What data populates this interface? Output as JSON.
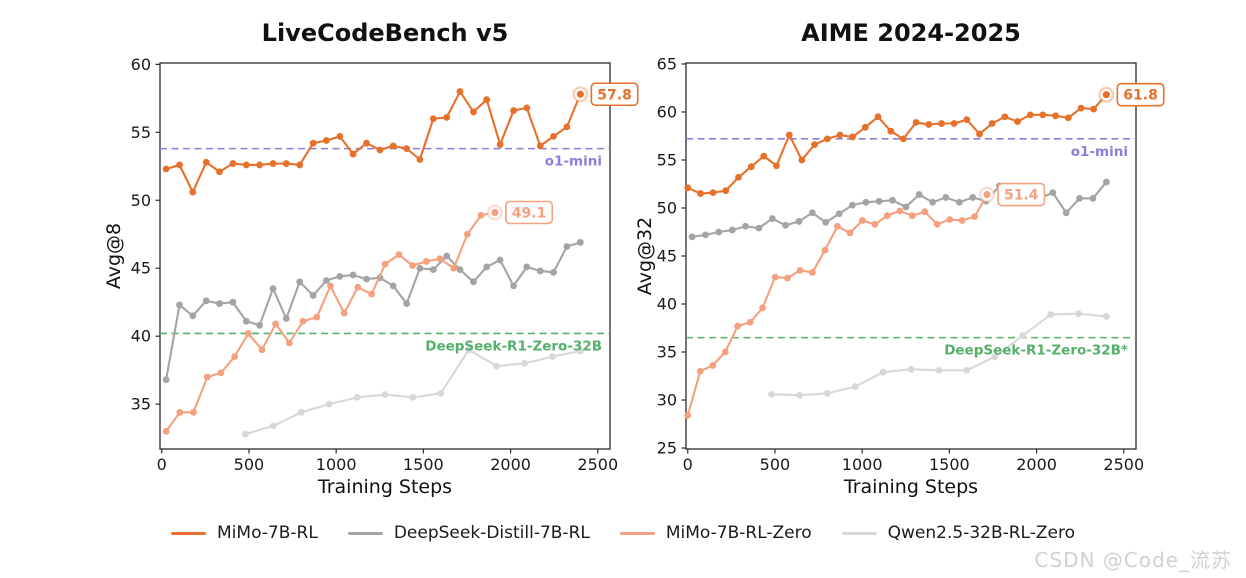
{
  "figure": {
    "watermark": "CSDN @Code_流苏"
  },
  "legend": {
    "items": [
      {
        "label": "MiMo-7B-RL",
        "color": "#e7702b"
      },
      {
        "label": "DeepSeek-Distill-7B-RL",
        "color": "#a4a4a4"
      },
      {
        "label": "MiMo-7B-RL-Zero",
        "color": "#f3a17e"
      },
      {
        "label": "Qwen2.5-32B-RL-Zero",
        "color": "#d8d8d8"
      }
    ]
  },
  "chart_data": [
    {
      "type": "line",
      "title": "LiveCodeBench v5",
      "xlabel": "Training Steps",
      "ylabel": "Avg@8",
      "xlim": [
        -10,
        2570
      ],
      "ylim": [
        31.7,
        60.1
      ],
      "xticks": [
        0,
        500,
        1000,
        1500,
        2000,
        2500
      ],
      "yticks": [
        35,
        40,
        45,
        50,
        55,
        60
      ],
      "grid": false,
      "legend_position": "bottom-center",
      "ref_lines": [
        {
          "label": "o1-mini",
          "value": 53.8,
          "color": "#8d7edb"
        },
        {
          "label": "DeepSeek-R1-Zero-32B",
          "value": 40.2,
          "color": "#55b06a"
        }
      ],
      "series": [
        {
          "name": "MiMo-7B-RL",
          "color": "#e7702b",
          "end_annotation": "57.8",
          "x": [
            25,
            102,
            178,
            255,
            331,
            408,
            485,
            561,
            638,
            714,
            791,
            868,
            944,
            1021,
            1097,
            1174,
            1251,
            1327,
            1404,
            1480,
            1557,
            1634,
            1710,
            1787,
            1863,
            1940,
            2017,
            2093,
            2170,
            2246,
            2323,
            2400
          ],
          "y": [
            52.3,
            52.6,
            50.6,
            52.8,
            52.1,
            52.7,
            52.6,
            52.6,
            52.7,
            52.7,
            52.6,
            54.2,
            54.4,
            54.7,
            53.4,
            54.2,
            53.7,
            54.0,
            53.8,
            53.0,
            56.0,
            56.1,
            58.0,
            56.5,
            57.4,
            54.1,
            56.6,
            56.8,
            54.0,
            54.7,
            55.4,
            57.8
          ]
        },
        {
          "name": "DeepSeek-Distill-7B-RL",
          "color": "#a4a4a4",
          "x": [
            25,
            102,
            178,
            255,
            331,
            408,
            485,
            561,
            638,
            714,
            791,
            868,
            944,
            1021,
            1097,
            1174,
            1251,
            1327,
            1404,
            1480,
            1557,
            1634,
            1710,
            1787,
            1863,
            1940,
            2017,
            2093,
            2170,
            2246,
            2323,
            2400
          ],
          "y": [
            36.8,
            42.3,
            41.5,
            42.6,
            42.4,
            42.5,
            41.1,
            40.8,
            43.5,
            41.3,
            44.0,
            43.0,
            44.1,
            44.4,
            44.5,
            44.2,
            44.3,
            43.7,
            42.4,
            45.0,
            44.9,
            45.9,
            44.9,
            44.0,
            45.1,
            45.6,
            43.7,
            45.1,
            44.8,
            44.7,
            46.6,
            46.9
          ]
        },
        {
          "name": "MiMo-7B-RL-Zero",
          "color": "#f3a17e",
          "end_annotation": "49.1",
          "x": [
            25,
            104,
            182,
            261,
            339,
            418,
            496,
            575,
            653,
            732,
            810,
            889,
            967,
            1046,
            1124,
            1203,
            1281,
            1360,
            1438,
            1517,
            1595,
            1674,
            1752,
            1831,
            1910
          ],
          "y": [
            33.0,
            34.4,
            34.4,
            37.0,
            37.3,
            38.5,
            40.2,
            39.0,
            40.9,
            39.5,
            41.1,
            41.4,
            43.7,
            41.7,
            43.6,
            43.1,
            45.3,
            46.0,
            45.2,
            45.5,
            45.7,
            45.0,
            47.5,
            48.9,
            49.1
          ]
        },
        {
          "name": "Qwen2.5-32B-RL-Zero",
          "color": "#d8d8d8",
          "x": [
            480,
            640,
            800,
            960,
            1120,
            1280,
            1440,
            1600,
            1760,
            1920,
            2080,
            2240,
            2400
          ],
          "y": [
            32.8,
            33.4,
            34.4,
            35.0,
            35.5,
            35.7,
            35.5,
            35.8,
            39.0,
            37.8,
            38.0,
            38.5,
            38.9
          ]
        }
      ]
    },
    {
      "type": "line",
      "title": "AIME 2024-2025",
      "xlabel": "Training Steps",
      "ylabel": "Avg@32",
      "xlim": [
        -10,
        2570
      ],
      "ylim": [
        24.9,
        65.1
      ],
      "xticks": [
        0,
        500,
        1000,
        1500,
        2000,
        2500
      ],
      "yticks": [
        25,
        30,
        35,
        40,
        45,
        50,
        55,
        60,
        65
      ],
      "grid": false,
      "legend_position": "bottom-center",
      "ref_lines": [
        {
          "label": "o1-mini",
          "value": 57.2,
          "color": "#8d7edb"
        },
        {
          "label": "DeepSeek-R1-Zero-32B*",
          "value": 36.5,
          "color": "#55b06a"
        }
      ],
      "series": [
        {
          "name": "MiMo-7B-RL",
          "color": "#e7702b",
          "end_annotation": "61.8",
          "x": [
            0,
            73,
            145,
            218,
            291,
            364,
            436,
            509,
            582,
            654,
            727,
            800,
            873,
            945,
            1018,
            1091,
            1164,
            1236,
            1309,
            1382,
            1455,
            1527,
            1600,
            1673,
            1745,
            1818,
            1891,
            1964,
            2036,
            2109,
            2182,
            2255,
            2327,
            2400
          ],
          "y": [
            52.1,
            51.5,
            51.6,
            51.8,
            53.2,
            54.3,
            55.4,
            54.4,
            57.6,
            55.0,
            56.6,
            57.2,
            57.6,
            57.4,
            58.4,
            59.5,
            58.0,
            57.2,
            58.9,
            58.7,
            58.8,
            58.8,
            59.2,
            57.7,
            58.8,
            59.5,
            59.0,
            59.7,
            59.7,
            59.6,
            59.4,
            60.4,
            60.3,
            61.8
          ]
        },
        {
          "name": "DeepSeek-Distill-7B-RL",
          "color": "#a4a4a4",
          "x": [
            25,
            102,
            178,
            255,
            331,
            408,
            485,
            561,
            638,
            714,
            791,
            868,
            944,
            1021,
            1097,
            1174,
            1251,
            1327,
            1404,
            1480,
            1557,
            1634,
            1710,
            1787,
            1863,
            1940,
            2017,
            2093,
            2170,
            2246,
            2323,
            2400
          ],
          "y": [
            47.0,
            47.2,
            47.5,
            47.7,
            48.1,
            47.9,
            48.9,
            48.2,
            48.6,
            49.5,
            48.5,
            49.4,
            50.3,
            50.6,
            50.7,
            50.8,
            50.1,
            51.4,
            50.6,
            51.1,
            50.6,
            51.1,
            50.7,
            52.3,
            51.3,
            51.5,
            51.0,
            51.6,
            49.5,
            51.0,
            51.0,
            52.7
          ]
        },
        {
          "name": "MiMo-7B-RL-Zero",
          "color": "#f3a17e",
          "end_annotation": "51.4",
          "x": [
            0,
            72,
            143,
            215,
            286,
            358,
            429,
            501,
            572,
            644,
            715,
            787,
            858,
            930,
            1001,
            1073,
            1144,
            1216,
            1287,
            1359,
            1430,
            1502,
            1573,
            1645,
            1716
          ],
          "y": [
            28.4,
            33.0,
            33.6,
            35.0,
            37.7,
            38.1,
            39.6,
            42.8,
            42.7,
            43.5,
            43.3,
            45.6,
            48.1,
            47.4,
            48.7,
            48.3,
            49.2,
            49.7,
            49.2,
            49.6,
            48.3,
            48.8,
            48.7,
            49.1,
            51.4
          ]
        },
        {
          "name": "Qwen2.5-32B-RL-Zero",
          "color": "#d8d8d8",
          "x": [
            480,
            640,
            800,
            960,
            1120,
            1280,
            1440,
            1600,
            1760,
            1920,
            2080,
            2240,
            2400
          ],
          "y": [
            30.6,
            30.5,
            30.7,
            31.4,
            32.9,
            33.2,
            33.1,
            33.1,
            34.5,
            36.7,
            38.9,
            39.0,
            38.7
          ]
        }
      ]
    }
  ]
}
